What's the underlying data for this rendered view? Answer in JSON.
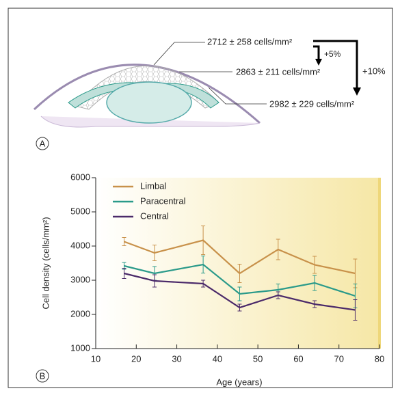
{
  "panel_a": {
    "label": "A",
    "labels": [
      "2712 ± 258 cells/mm²",
      "2863 ± 211 cells/mm²",
      "2982 ± 229 cells/mm²"
    ],
    "changes": [
      "+5%",
      "+10%"
    ]
  },
  "chart_data": {
    "type": "line",
    "panel_label": "B",
    "x_label": "Age (years)",
    "y_label": "Cell density (cells/mm²)",
    "x": [
      17,
      24.5,
      36.5,
      45.5,
      55,
      64,
      74
    ],
    "xlim": [
      10,
      80
    ],
    "xticks": [
      10,
      20,
      30,
      40,
      50,
      60,
      70,
      80
    ],
    "ylim": [
      1000,
      6000
    ],
    "yticks": [
      1000,
      2000,
      3000,
      4000,
      5000,
      6000
    ],
    "series": [
      {
        "name": "Limbal",
        "color": "#c8914a",
        "values": [
          4130,
          3800,
          4170,
          3200,
          3900,
          3450,
          3200
        ],
        "errors": [
          120,
          230,
          420,
          270,
          300,
          250,
          420
        ]
      },
      {
        "name": "Paracentral",
        "color": "#2a9a8a",
        "values": [
          3420,
          3200,
          3460,
          2600,
          2720,
          2920,
          2540
        ],
        "errors": [
          100,
          200,
          250,
          200,
          170,
          220,
          350
        ]
      },
      {
        "name": "Central",
        "color": "#4b2a6a",
        "values": [
          3200,
          2980,
          2900,
          2200,
          2560,
          2300,
          2130
        ],
        "errors": [
          150,
          180,
          100,
          100,
          100,
          100,
          300
        ]
      }
    ]
  }
}
